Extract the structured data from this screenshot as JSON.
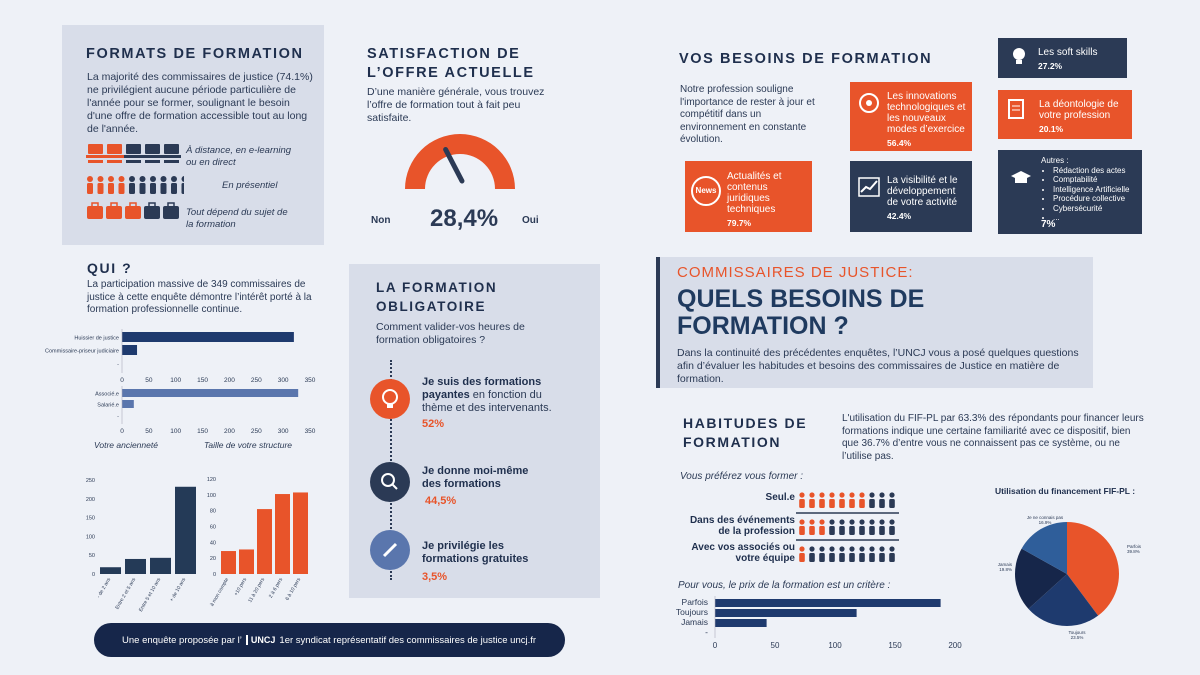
{
  "formats": {
    "title": "FORMATS DE FORMATION",
    "text": "La majorité des commissaires de justice (74.1%) ne privilégient aucune période particulière de l'année pour se former, soulignant le besoin d'une offre de formation accessible tout au long de l'année.",
    "row1_label_1": "À distance, en e-learning",
    "row1_label_2": "ou en direct",
    "row2_label": "En présentiel",
    "row3_label_1": "Tout dépend du sujet de",
    "row3_label_2": "la formation",
    "row1_orange_count": 2,
    "row2_orange_count": 4,
    "row3_orange_count": 3
  },
  "satisfaction": {
    "title_1": "SATISFACTION DE",
    "title_2": "L’OFFRE ACTUELLE",
    "text": "D’une manière générale, vous trouvez l’offre de formation tout à fait peu satisfaite.",
    "value": "28,4%",
    "left": "Non",
    "right": "Oui",
    "gauge_fraction": 0.284
  },
  "besoins": {
    "title": "VOS BESOINS DE FORMATION",
    "text": "Notre profession souligne l'importance de rester à jour et compétitif dans un environnement en constante évolution.",
    "cards": [
      {
        "label": "Les soft skills",
        "pct": "27.2%"
      },
      {
        "label": "Les innovations technologiques et les nouveaux modes d’exercice",
        "pct": "56.4%"
      },
      {
        "label": "La déontologie de votre profession",
        "pct": "20.1%"
      },
      {
        "label": "Actualités et contenus juridiques techniques",
        "pct": "79.7%"
      },
      {
        "label": "La visibilité et le développement de votre activité",
        "pct": "42.4%"
      },
      {
        "label": "Autres :",
        "pct": "7%",
        "items": [
          "Rédaction des actes",
          "Comptabilité",
          "Intelligence Artificielle",
          "Procédure collective",
          "Cybersécurité",
          "..."
        ]
      }
    ],
    "news_badge": "News"
  },
  "hero": {
    "kicker": "COMMISSAIRES DE JUSTICE:",
    "title_1": "QUELS BESOINS DE",
    "title_2": "FORMATION ?",
    "text": "Dans la continuité des précédentes enquêtes, l’UNCJ vous a posé quelques questions afin d’évaluer les habitudes et besoins des commissaires de Justice en matière de formation."
  },
  "qui": {
    "title": "QUI ?",
    "text": "La participation massive de 349 commissaires de justice à cette enquête démontre l’intérêt porté à la formation professionnelle continue.",
    "anciennete_label": "Votre ancienneté",
    "taille_label": "Taille de votre structure"
  },
  "obligatoire": {
    "title_1": "LA FORMATION",
    "title_2": "OBLIGATOIRE",
    "question": "Comment valider-vos heures de formation obligatoires ?",
    "items": [
      {
        "bold": "Je suis des formations payantes",
        "rest": " en fonction du thème et des intervenants.",
        "pct": "52%"
      },
      {
        "bold": "Je donne moi-même des formations",
        "rest": "",
        "pct": "44,5%"
      },
      {
        "bold": "Je privilégie les formations gratuites",
        "rest": "",
        "pct": "3,5%"
      }
    ]
  },
  "habitudes": {
    "title_1": "HABITUDES DE",
    "title_2": "FORMATION",
    "text": "L'utilisation du FIF-PL par 63.3% des répondants pour financer leurs formations indique une certaine familiarité avec ce dispositif, bien que 36.7% d’entre vous  ne connaissent pas ce système, ou ne l’utilise pas.",
    "question": "Vous préférez vous former :",
    "rows": [
      {
        "label_1": "Seul.e",
        "label_2": "",
        "orange": 7
      },
      {
        "label_1": "Dans des événements",
        "label_2": "de la profession",
        "orange": 3
      },
      {
        "label_1": "Avec vos associés ou",
        "label_2": "votre équipe",
        "orange": 1
      }
    ],
    "prix_question": "Pour vous, le prix de la formation est un critère :"
  },
  "footer": {
    "left": "Une enquête proposée par l’",
    "logo": "UNCJ",
    "right": "1er syndicat représentatif des commissaires de justice uncj.fr"
  },
  "chart_data": [
    {
      "type": "bar",
      "orientation": "horizontal",
      "categories": [
        "Huissier de justice",
        "Commissaire-priseur judiciaire",
        "-"
      ],
      "values": [
        320,
        28,
        0
      ],
      "xlim": [
        0,
        350
      ],
      "xticks": [
        0,
        50,
        100,
        150,
        200,
        250,
        300,
        350
      ],
      "color": "#1e3a6e"
    },
    {
      "type": "bar",
      "orientation": "horizontal",
      "categories": [
        "Associé.e",
        "Salarié.e",
        "-"
      ],
      "values": [
        328,
        22,
        0
      ],
      "xlim": [
        0,
        350
      ],
      "xticks": [
        0,
        50,
        100,
        150,
        200,
        250,
        300,
        350
      ],
      "color": "#5a76ad"
    },
    {
      "type": "bar",
      "categories": [
        "- de 2 ans",
        "Entre 2 et 5 ans",
        "Entre 5 et 10 ans",
        "+ de 10 ans"
      ],
      "values": [
        18,
        40,
        43,
        232
      ],
      "ylim": [
        0,
        250
      ],
      "yticks": [
        0,
        50,
        100,
        150,
        200,
        250
      ],
      "color": "#243a57"
    },
    {
      "type": "bar",
      "categories": [
        "à mon compte",
        "+10 pers",
        "11 à 20 pers",
        "2 à 6 pers",
        "6 à 10 pers"
      ],
      "values": [
        29,
        31,
        82,
        101,
        103
      ],
      "ylim": [
        0,
        120
      ],
      "yticks": [
        0,
        20,
        40,
        60,
        80,
        100,
        120
      ],
      "color": "#e8542a"
    },
    {
      "type": "pie",
      "title": "Utilisation du financement FIF-PL :",
      "labels": [
        "Parfois",
        "Toujours",
        "Jamais",
        "Je ne connais pas"
      ],
      "values": [
        39.8,
        23.5,
        19.8,
        16.9
      ],
      "value_labels": [
        "39.8%",
        "23.5%",
        "19.8%",
        "16.9%"
      ],
      "colors": [
        "#e8542a",
        "#1e3a6e",
        "#16264a",
        "#2f5e9a"
      ]
    },
    {
      "type": "bar",
      "orientation": "horizontal",
      "categories": [
        "Parfois",
        "Toujours",
        "Jamais",
        "-"
      ],
      "values": [
        188,
        118,
        43,
        0
      ],
      "xlim": [
        0,
        200
      ],
      "xticks": [
        0,
        50,
        100,
        150,
        200
      ],
      "color": "#1e3a6e"
    }
  ]
}
